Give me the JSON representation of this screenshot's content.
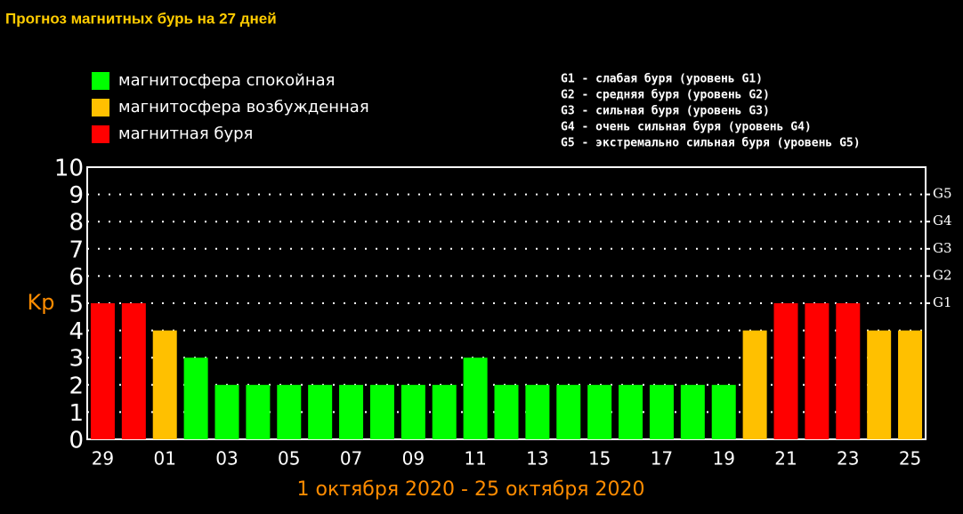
{
  "chart_data": {
    "type": "bar",
    "title": "Прогноз магнитных бурь на 27 дней",
    "subtitle": "1 октября 2020 - 25 октября 2020",
    "y_label": "Kp",
    "legend": [
      {
        "label": "магнитосфера спокойная",
        "color": "#00ff00"
      },
      {
        "label": "магнитосфера возбужденная",
        "color": "#ffc000"
      },
      {
        "label": "магнитная буря",
        "color": "#ff0000"
      }
    ],
    "storm_levels": [
      "G1 - слабая буря (уровень G1)",
      "G2 - средняя буря (уровень G2)",
      "G3 - сильная буря (уровень G3)",
      "G4 - очень сильная буря (уровень G4)",
      "G5 - экстремально сильная буря (уровень G5)"
    ],
    "categories": [
      "29",
      null,
      "01",
      null,
      "03",
      null,
      "05",
      null,
      "07",
      null,
      "09",
      null,
      "11",
      null,
      "13",
      null,
      "15",
      null,
      "17",
      null,
      "19",
      null,
      "21",
      null,
      "23",
      null,
      "25"
    ],
    "values": [
      5,
      5,
      4,
      3,
      2,
      2,
      2,
      2,
      2,
      2,
      2,
      2,
      3,
      2,
      2,
      2,
      2,
      2,
      2,
      2,
      2,
      4,
      5,
      5,
      5,
      4,
      4
    ],
    "colors": [
      "#ff0000",
      "#ff0000",
      "#ffc000",
      "#00ff00",
      "#00ff00",
      "#00ff00",
      "#00ff00",
      "#00ff00",
      "#00ff00",
      "#00ff00",
      "#00ff00",
      "#00ff00",
      "#00ff00",
      "#00ff00",
      "#00ff00",
      "#00ff00",
      "#00ff00",
      "#00ff00",
      "#00ff00",
      "#00ff00",
      "#00ff00",
      "#ffc000",
      "#ff0000",
      "#ff0000",
      "#ff0000",
      "#ffc000",
      "#ffc000"
    ],
    "ylim": [
      0,
      10
    ],
    "yticks": [
      0,
      1,
      2,
      3,
      4,
      5,
      6,
      7,
      8,
      9,
      10
    ],
    "y2lim": [
      0,
      10
    ],
    "y2ticks": [
      {
        "value": 5,
        "label": "G1"
      },
      {
        "value": 6,
        "label": "G2"
      },
      {
        "value": 7,
        "label": "G3"
      },
      {
        "value": 8,
        "label": "G4"
      },
      {
        "value": 9,
        "label": "G5"
      }
    ],
    "grid": true
  }
}
